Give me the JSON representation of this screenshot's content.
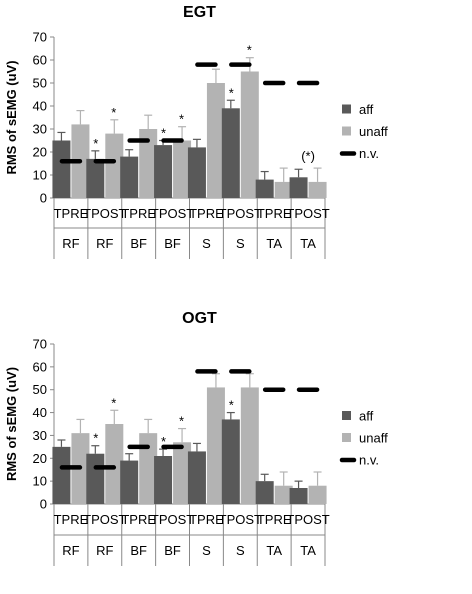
{
  "chart_data": [
    {
      "type": "bar",
      "title": "EGT",
      "ylabel": "RMS of sEMG (uV)",
      "ylim": [
        0,
        70
      ],
      "yticks": [
        0,
        10,
        20,
        30,
        40,
        50,
        60,
        70
      ],
      "categories": [
        "TPRE",
        "TPOST",
        "TPRE",
        "TPOST",
        "TPRE",
        "TPOST",
        "TPRE",
        "TPOST"
      ],
      "groups": [
        "RF",
        "RF",
        "BF",
        "BF",
        "S",
        "S",
        "TA",
        "TA"
      ],
      "series": [
        {
          "name": "aff",
          "color": "#595959",
          "values": [
            25,
            17,
            18,
            23,
            22,
            39,
            8,
            9
          ],
          "errors": [
            3.5,
            3.5,
            3,
            2,
            3.5,
            3.5,
            3.5,
            3.5
          ]
        },
        {
          "name": "unaff",
          "color": "#b3b3b3",
          "values": [
            32,
            28,
            30,
            25,
            50,
            55,
            7,
            7
          ],
          "errors": [
            6,
            6,
            6,
            6,
            6,
            6,
            6,
            6
          ]
        }
      ],
      "normal_values": {
        "name": "n.v.",
        "values": [
          16,
          16,
          25,
          25,
          58,
          58,
          50,
          50
        ]
      },
      "annotations": [
        {
          "index": 1,
          "series": "aff",
          "text": "*"
        },
        {
          "index": 1,
          "series": "unaff",
          "text": "*"
        },
        {
          "index": 3,
          "series": "aff",
          "text": "*"
        },
        {
          "index": 3,
          "series": "unaff",
          "text": "*"
        },
        {
          "index": 5,
          "series": "aff",
          "text": "*"
        },
        {
          "index": 5,
          "series": "unaff",
          "text": "*"
        },
        {
          "index": 7,
          "series": "group",
          "text": "(*)"
        }
      ],
      "legend": [
        "aff",
        "unaff",
        "n.v."
      ],
      "legend_position": "right"
    },
    {
      "type": "bar",
      "title": "OGT",
      "ylabel": "RMS of sEMG (uV)",
      "ylim": [
        0,
        70
      ],
      "yticks": [
        0,
        10,
        20,
        30,
        40,
        50,
        60,
        70
      ],
      "categories": [
        "TPRE",
        "TPOST",
        "TPRE",
        "TPOST",
        "TPRE",
        "TPOST",
        "TPRE",
        "TPOST"
      ],
      "groups": [
        "RF",
        "RF",
        "BF",
        "BF",
        "S",
        "S",
        "TA",
        "TA"
      ],
      "series": [
        {
          "name": "aff",
          "color": "#595959",
          "values": [
            25,
            22,
            19,
            21,
            23,
            37,
            10,
            7
          ],
          "errors": [
            3,
            3.5,
            3,
            3,
            3.5,
            3,
            3,
            3
          ]
        },
        {
          "name": "unaff",
          "color": "#b3b3b3",
          "values": [
            31,
            35,
            31,
            27,
            51,
            51,
            8,
            8
          ],
          "errors": [
            6,
            6,
            6,
            6,
            6,
            6,
            6,
            6
          ]
        }
      ],
      "normal_values": {
        "name": "n.v.",
        "values": [
          16,
          16,
          25,
          25,
          58,
          58,
          50,
          50
        ]
      },
      "annotations": [
        {
          "index": 1,
          "series": "aff",
          "text": "*"
        },
        {
          "index": 1,
          "series": "unaff",
          "text": "*"
        },
        {
          "index": 3,
          "series": "aff",
          "text": "*"
        },
        {
          "index": 3,
          "series": "unaff",
          "text": "*"
        },
        {
          "index": 5,
          "series": "aff",
          "text": "*"
        }
      ],
      "legend": [
        "aff",
        "unaff",
        "n.v."
      ],
      "legend_position": "right"
    }
  ]
}
